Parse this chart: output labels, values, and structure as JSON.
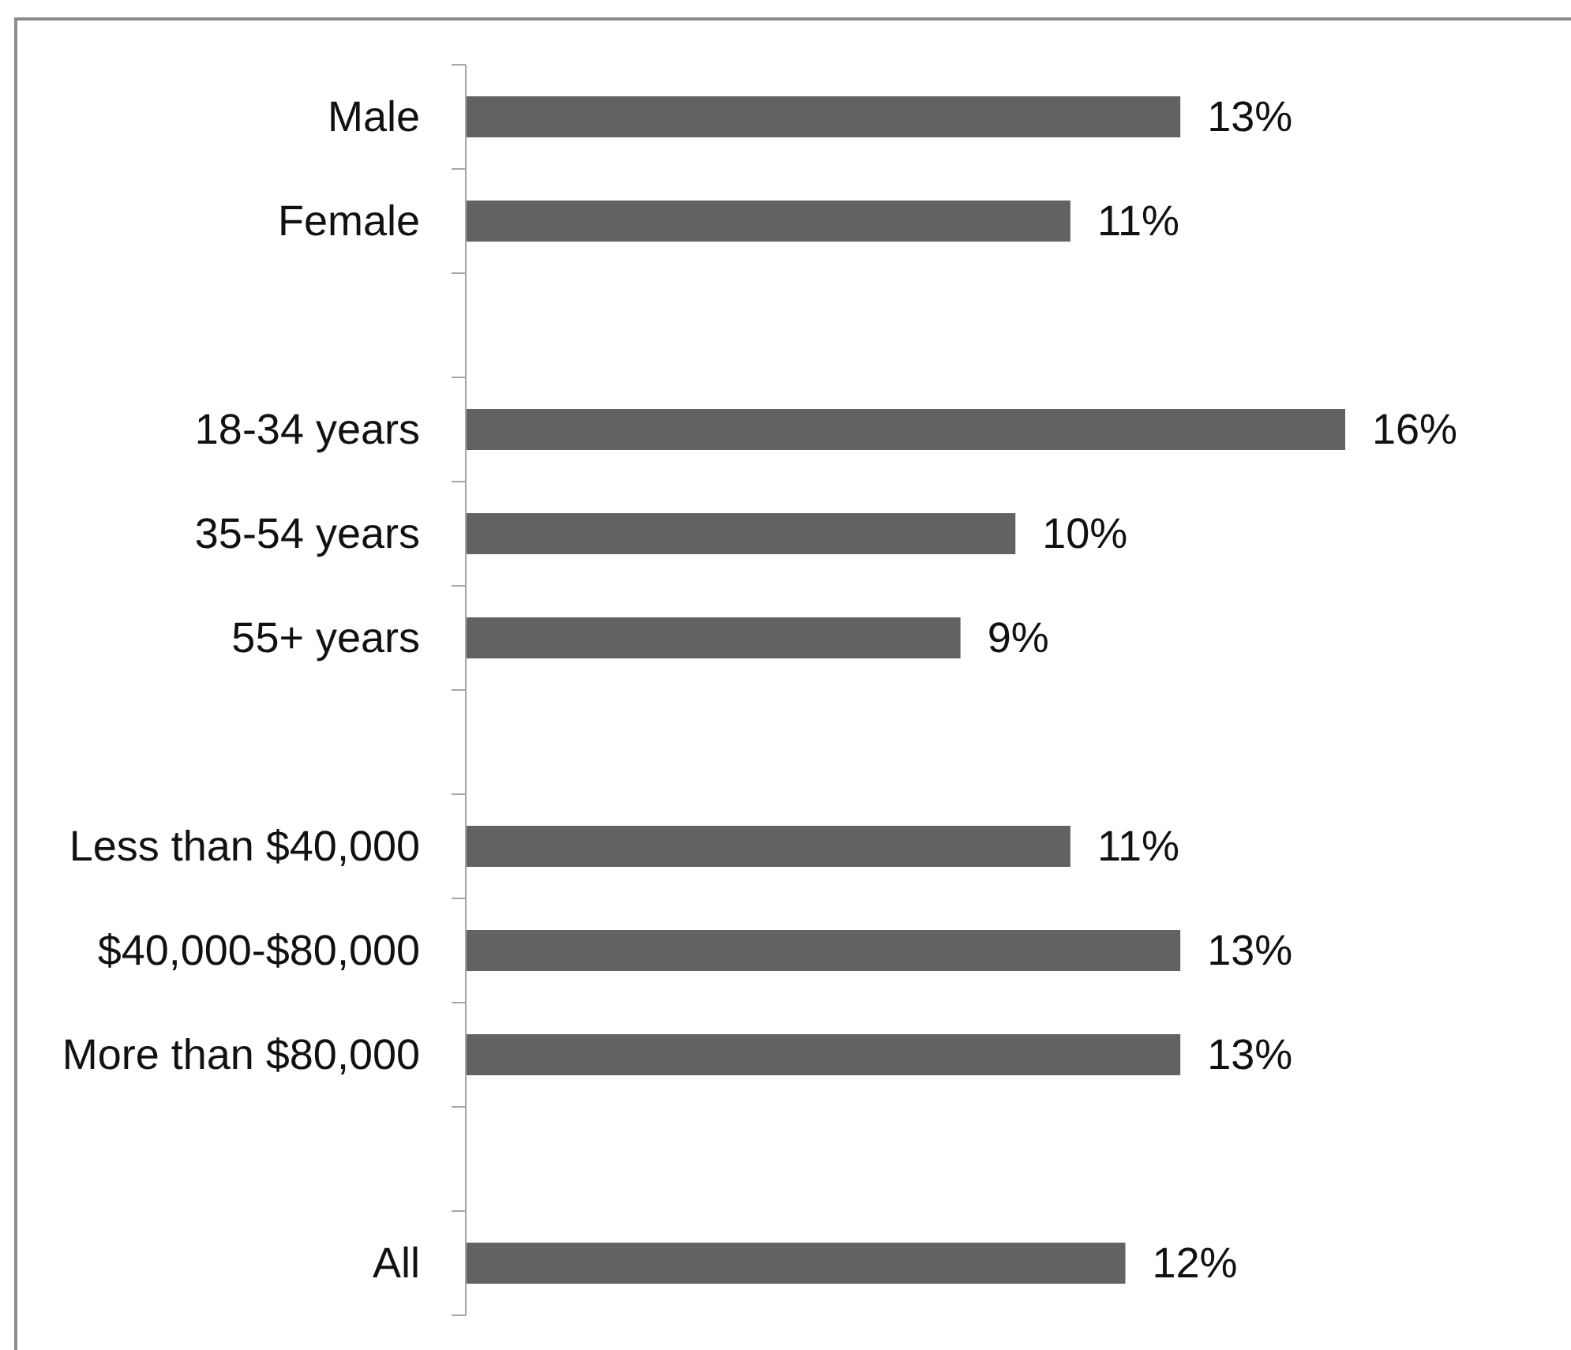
{
  "chart_data": {
    "type": "bar",
    "orientation": "horizontal",
    "categories": [
      "Male",
      "Female",
      null,
      "18-34 years",
      "35-54 years",
      "55+ years",
      null,
      "Less than $40,000",
      "$40,000-$80,000",
      "More than $80,000",
      null,
      "All"
    ],
    "values": [
      13,
      11,
      null,
      16,
      10,
      9,
      null,
      11,
      13,
      13,
      null,
      12
    ],
    "value_labels": [
      "13%",
      "11%",
      null,
      "16%",
      "10%",
      "9%",
      null,
      "11%",
      "13%",
      "13%",
      null,
      "12%"
    ],
    "color": "#626262",
    "tick_labels": "y"
  }
}
